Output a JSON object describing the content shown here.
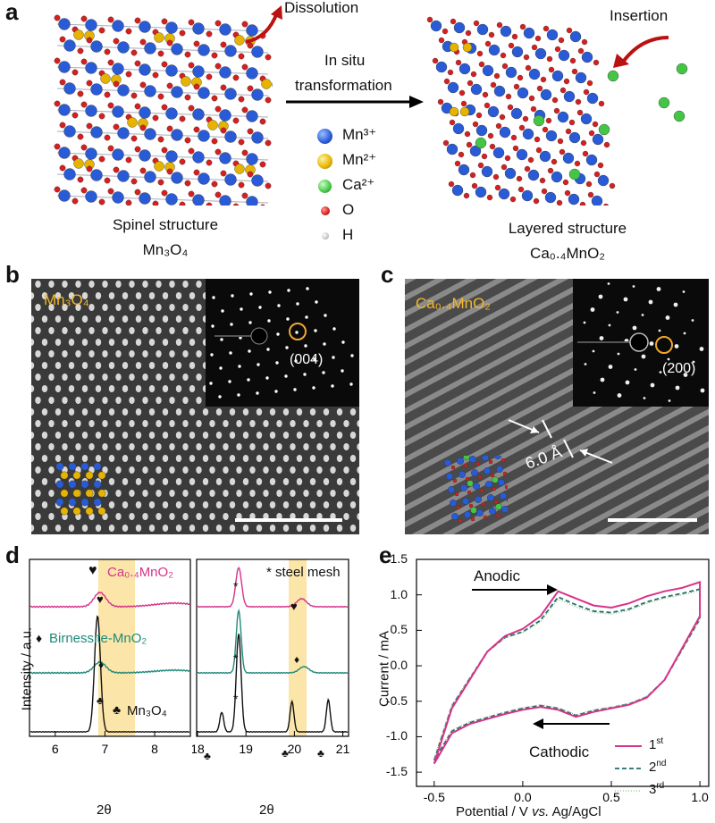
{
  "panel_a": {
    "label": "a",
    "dissolution": "Dissolution",
    "insertion": "Insertion",
    "arrow_line1": "In situ",
    "arrow_line2": "transformation",
    "left_title": "Spinel structure",
    "left_formula": "Mn₃O₄",
    "right_title": "Layered structure",
    "right_formula": "Ca₀.₄MnO₂",
    "legend": [
      {
        "label": "Mn³⁺",
        "color": "#2a5bd7"
      },
      {
        "label": "Mn²⁺",
        "color": "#e6b400"
      },
      {
        "label": "Ca²⁺",
        "color": "#45c545"
      },
      {
        "label": "O",
        "color": "#d81e1e"
      },
      {
        "label": "H",
        "color": "#c8c8c8"
      }
    ]
  },
  "panel_b": {
    "label": "b",
    "compound": "Mn₃O₄",
    "spot_label": "(004)"
  },
  "panel_c": {
    "label": "c",
    "compound": "Ca₀.₄MnO₂",
    "spot_label": "(200)",
    "spacing": "6.0 Å"
  },
  "panel_d": {
    "label": "d",
    "ylabel": "Intensity / a.u.",
    "xlabel": "2θ",
    "left_ticks": [
      "6",
      "7",
      "8"
    ],
    "right_ticks": [
      "18",
      "19",
      "20",
      "21"
    ],
    "series_labels": {
      "ca": "Ca₀.₄MnO₂",
      "bir": "Birnessite-MnO₂",
      "mn": "Mn₃O₄"
    },
    "steel_mesh_label": "* steel mesh",
    "symbols": {
      "heart": "♥",
      "diamond": "♦",
      "club": "♣",
      "star": "*"
    },
    "colors": {
      "ca": "#d6338a",
      "bir": "#1f8a7a",
      "mn": "#111111",
      "band": "#fbe5a8"
    }
  },
  "panel_e": {
    "label": "e",
    "anodic": "Anodic",
    "cathodic": "Cathodic",
    "ylabel": "Current / mA",
    "xlabel_parts": [
      "Potential / V ",
      "vs.",
      " Ag/AgCl"
    ],
    "legend": [
      {
        "base": "1",
        "sup": "st",
        "color": "#d6338a"
      },
      {
        "base": "2",
        "sup": "nd",
        "color": "#1f6f6a"
      },
      {
        "base": "3",
        "sup": "rd",
        "color": "#8bbf7a"
      }
    ]
  },
  "chart_data": {
    "type": "line",
    "title": "",
    "xlabel": "Potential / V vs. Ag/AgCl",
    "ylabel": "Current / mA",
    "xlim": [
      -0.6,
      1.05
    ],
    "ylim": [
      -1.7,
      1.5
    ],
    "xticks": [
      "-0.5",
      "0.0",
      "0.5",
      "1.0"
    ],
    "yticks": [
      "1.5",
      "1.0",
      "0.5",
      "0.0",
      "-0.5",
      "-1.0",
      "-1.5"
    ],
    "legend_position": "bottom-right",
    "series": [
      {
        "name": "1st",
        "x": [
          -0.5,
          -0.4,
          -0.3,
          -0.2,
          -0.1,
          0.0,
          0.1,
          0.2,
          0.3,
          0.4,
          0.5,
          0.6,
          0.7,
          0.8,
          0.9,
          1.0,
          1.0,
          0.9,
          0.8,
          0.7,
          0.6,
          0.5,
          0.4,
          0.3,
          0.2,
          0.1,
          0.0,
          -0.1,
          -0.2,
          -0.3,
          -0.4,
          -0.5
        ],
        "y": [
          -1.38,
          -0.6,
          -0.2,
          0.2,
          0.42,
          0.52,
          0.7,
          1.05,
          0.95,
          0.85,
          0.82,
          0.88,
          0.98,
          1.05,
          1.1,
          1.18,
          0.7,
          0.25,
          -0.2,
          -0.45,
          -0.55,
          -0.6,
          -0.65,
          -0.72,
          -0.62,
          -0.58,
          -0.62,
          -0.68,
          -0.75,
          -0.82,
          -0.95,
          -1.38
        ]
      },
      {
        "name": "2nd",
        "x": [
          -0.5,
          -0.4,
          -0.3,
          -0.2,
          -0.1,
          0.0,
          0.1,
          0.2,
          0.3,
          0.4,
          0.5,
          0.6,
          0.7,
          0.8,
          0.9,
          1.0,
          1.0,
          0.9,
          0.8,
          0.7,
          0.6,
          0.5,
          0.4,
          0.3,
          0.2,
          0.1,
          0.0,
          -0.1,
          -0.2,
          -0.3,
          -0.4,
          -0.5
        ],
        "y": [
          -1.33,
          -0.57,
          -0.18,
          0.2,
          0.4,
          0.48,
          0.64,
          0.97,
          0.86,
          0.77,
          0.75,
          0.8,
          0.9,
          0.97,
          1.02,
          1.08,
          0.66,
          0.23,
          -0.2,
          -0.44,
          -0.54,
          -0.59,
          -0.63,
          -0.7,
          -0.6,
          -0.56,
          -0.6,
          -0.66,
          -0.73,
          -0.8,
          -0.92,
          -1.33
        ]
      },
      {
        "name": "3rd",
        "x": [
          -0.5,
          -0.4,
          -0.3,
          -0.2,
          -0.1,
          0.0,
          0.1,
          0.2,
          0.3,
          0.4,
          0.5,
          0.6,
          0.7,
          0.8,
          0.9,
          1.0,
          1.0,
          0.9,
          0.8,
          0.7,
          0.6,
          0.5,
          0.4,
          0.3,
          0.2,
          0.1,
          0.0,
          -0.1,
          -0.2,
          -0.3,
          -0.4,
          -0.5
        ],
        "y": [
          -1.3,
          -0.55,
          -0.17,
          0.2,
          0.39,
          0.47,
          0.62,
          0.94,
          0.83,
          0.75,
          0.73,
          0.78,
          0.88,
          0.95,
          1.0,
          1.06,
          0.65,
          0.22,
          -0.2,
          -0.43,
          -0.53,
          -0.58,
          -0.62,
          -0.69,
          -0.59,
          -0.55,
          -0.59,
          -0.65,
          -0.72,
          -0.79,
          -0.91,
          -1.3
        ]
      }
    ]
  }
}
